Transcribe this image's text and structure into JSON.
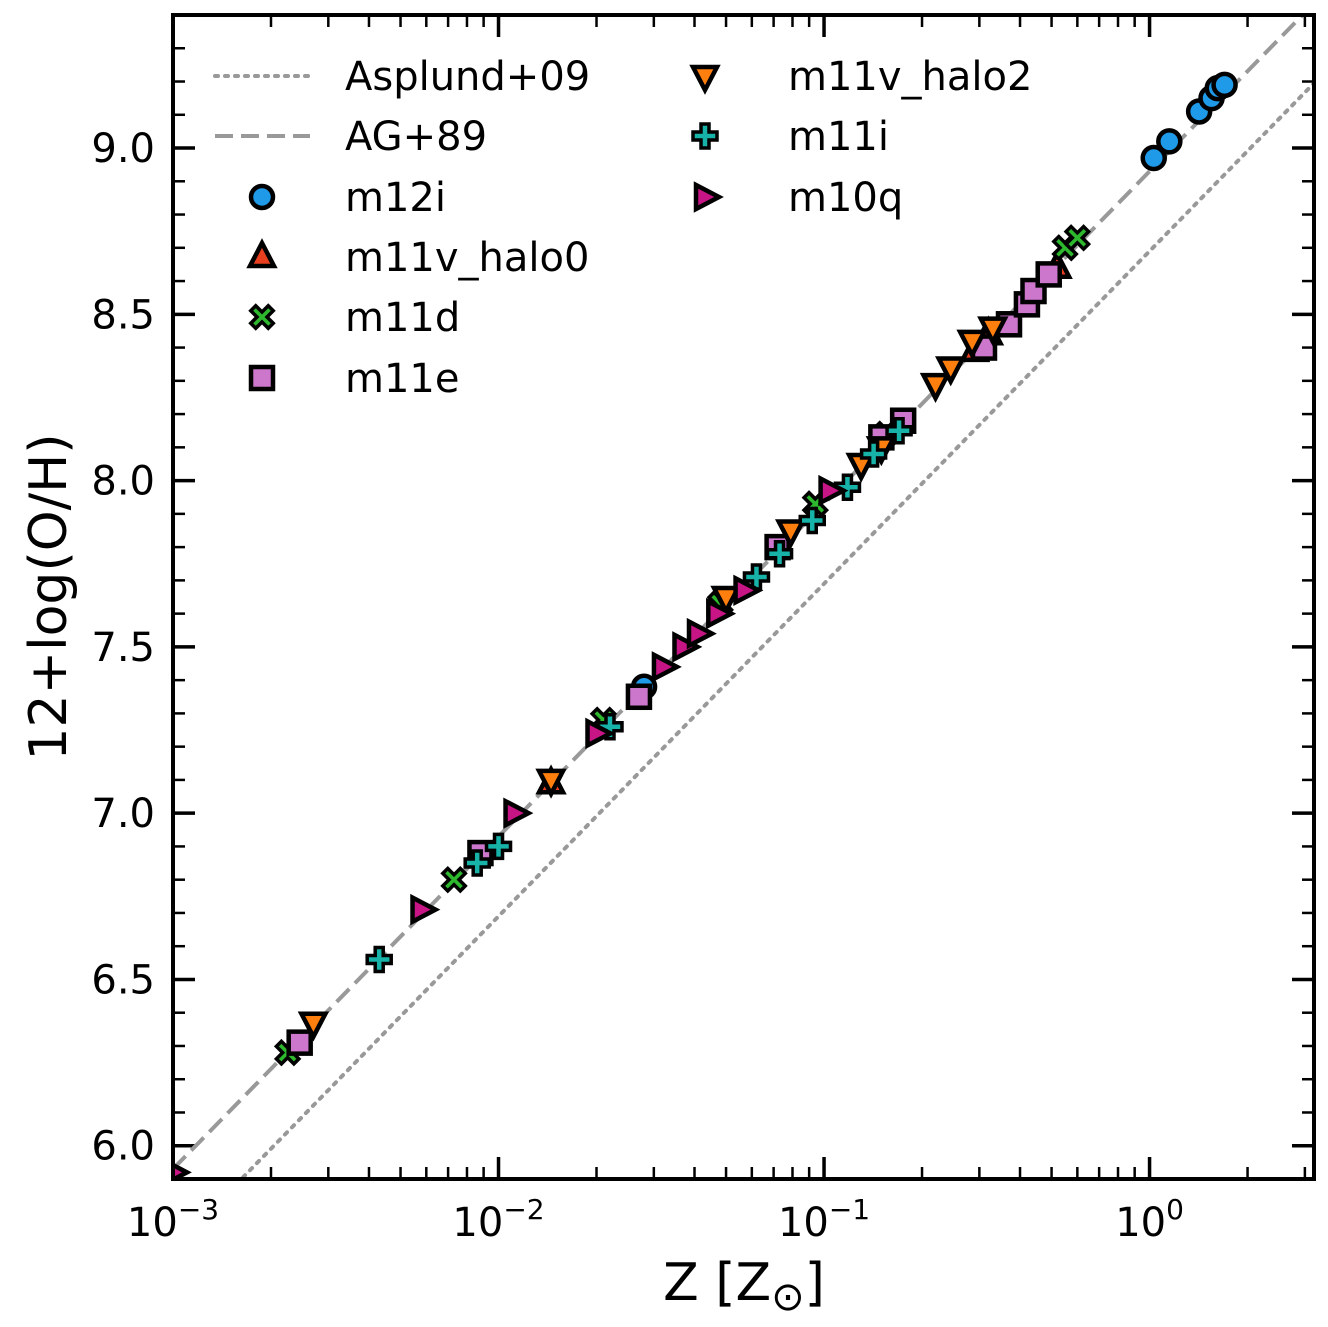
{
  "chart_data": {
    "type": "scatter",
    "title": "",
    "xlabel": "Z [Z",
    "xlabel_sub": "⊙",
    "xlabel_close": "]",
    "ylabel": "12+log(O/H)",
    "xscale": "log",
    "xlim": [
      0.001,
      3.2
    ],
    "ylim": [
      5.9,
      9.4
    ],
    "grid": false,
    "legend_location": "top-left",
    "x_ticks": [
      {
        "value": 0.001,
        "base": "10",
        "exp": "−3"
      },
      {
        "value": 0.01,
        "base": "10",
        "exp": "−2"
      },
      {
        "value": 0.1,
        "base": "10",
        "exp": "−1"
      },
      {
        "value": 1,
        "base": "10",
        "exp": "0"
      }
    ],
    "y_ticks": [
      {
        "value": 6.0,
        "label": "6.0"
      },
      {
        "value": 6.5,
        "label": "6.5"
      },
      {
        "value": 7.0,
        "label": "7.0"
      },
      {
        "value": 7.5,
        "label": "7.5"
      },
      {
        "value": 8.0,
        "label": "8.0"
      },
      {
        "value": 8.5,
        "label": "8.5"
      },
      {
        "value": 9.0,
        "label": "9.0"
      }
    ],
    "reference_lines": [
      {
        "name": "Asplund+09",
        "style": "dotted",
        "color": "#999999",
        "intercept": 8.69
      },
      {
        "name": "AG+89",
        "style": "dashed",
        "color": "#999999",
        "intercept": 8.93
      }
    ],
    "series": [
      {
        "name": "m12i",
        "marker": "circle",
        "color": "#1f9ae8",
        "x": [
          0.028,
          1.03,
          1.15,
          1.42,
          1.55,
          1.62,
          1.7
        ],
        "y": [
          7.38,
          8.97,
          9.02,
          9.11,
          9.15,
          9.18,
          9.19
        ]
      },
      {
        "name": "m11v_halo0",
        "marker": "triangle-up",
        "color": "#e8401f",
        "x": [
          0.0145,
          0.29,
          0.32,
          0.52
        ],
        "y": [
          7.09,
          8.39,
          8.44,
          8.64
        ]
      },
      {
        "name": "m11d",
        "marker": "x",
        "color": "#2db82d",
        "x": [
          0.00225,
          0.0073,
          0.021,
          0.048,
          0.094,
          0.155,
          0.55,
          0.6
        ],
        "y": [
          6.28,
          6.8,
          7.28,
          7.63,
          7.93,
          8.14,
          8.7,
          8.73
        ]
      },
      {
        "name": "m11e",
        "marker": "square",
        "color": "#cc77cc",
        "x": [
          0.00245,
          0.0088,
          0.027,
          0.072,
          0.15,
          0.175,
          0.31,
          0.37,
          0.42,
          0.44,
          0.49
        ],
        "y": [
          6.31,
          6.88,
          7.35,
          7.8,
          8.13,
          8.18,
          8.4,
          8.47,
          8.53,
          8.57,
          8.62
        ]
      },
      {
        "name": "m11v_halo2",
        "marker": "triangle-down",
        "color": "#ff7f0e",
        "x": [
          0.0027,
          0.0145,
          0.05,
          0.079,
          0.13,
          0.15,
          0.22,
          0.245,
          0.285,
          0.33
        ],
        "y": [
          6.37,
          7.1,
          7.65,
          7.85,
          8.05,
          8.1,
          8.29,
          8.34,
          8.42,
          8.46
        ]
      },
      {
        "name": "m11i",
        "marker": "plus",
        "color": "#17b3a8",
        "x": [
          0.0043,
          0.0086,
          0.01,
          0.022,
          0.062,
          0.073,
          0.092,
          0.118,
          0.142,
          0.17
        ],
        "y": [
          6.56,
          6.85,
          6.9,
          7.26,
          7.71,
          7.78,
          7.88,
          7.98,
          8.08,
          8.15
        ]
      },
      {
        "name": "m10q",
        "marker": "triangle-right",
        "color": "#c71585",
        "x": [
          0.001,
          0.0058,
          0.0112,
          0.02,
          0.032,
          0.037,
          0.041,
          0.047,
          0.057,
          0.104
        ],
        "y": [
          5.92,
          6.71,
          7.0,
          7.24,
          7.44,
          7.5,
          7.54,
          7.6,
          7.67,
          7.97
        ]
      }
    ]
  }
}
